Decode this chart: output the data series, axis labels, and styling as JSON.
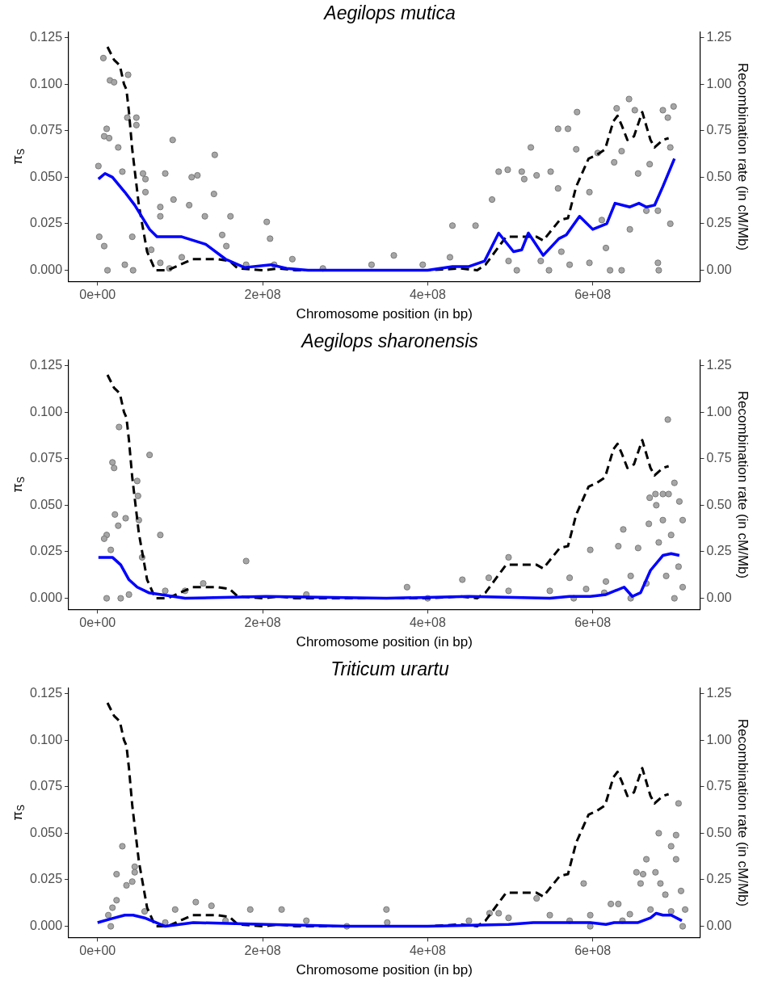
{
  "chart_data": [
    {
      "type": "scatter",
      "title": "Aegilops mutica",
      "xlabel": "Chromosome position (in bp)",
      "ylabel": "π$_{S}$",
      "y2label": "Recombination rate (in cM/Mb)",
      "grid": false,
      "legend": false,
      "xlim": [
        -35000000.0,
        730000000.0
      ],
      "ylim": [
        -0.006,
        0.128
      ],
      "y2lim": [
        -0.06,
        1.28
      ],
      "xticks": [
        {
          "value": 0,
          "label": "0e+00"
        },
        {
          "value": 200000000.0,
          "label": "2e+08"
        },
        {
          "value": 400000000.0,
          "label": "4e+08"
        },
        {
          "value": 600000000.0,
          "label": "6e+08"
        }
      ],
      "yticks": [
        {
          "value": 0,
          "label": "0.000"
        },
        {
          "value": 0.025,
          "label": "0.025"
        },
        {
          "value": 0.05,
          "label": "0.050"
        },
        {
          "value": 0.075,
          "label": "0.075"
        },
        {
          "value": 0.1,
          "label": "0.100"
        },
        {
          "value": 0.125,
          "label": "0.125"
        }
      ],
      "y2ticks": [
        {
          "value": 0,
          "label": "0.00"
        },
        {
          "value": 0.25,
          "label": "0.25"
        },
        {
          "value": 0.5,
          "label": "0.50"
        },
        {
          "value": 0.75,
          "label": "0.75"
        },
        {
          "value": 1,
          "label": "1.00"
        },
        {
          "value": 1.25,
          "label": "1.25"
        }
      ],
      "series": [
        {
          "type": "scatter",
          "marker": "circle",
          "color": "#a6a6a6",
          "x": [
            7000000.0,
            37000000.0,
            15000000.0,
            20000000.0,
            36000000.0,
            47000000.0,
            47000000.0,
            11000000.0,
            8000000.0,
            14000000.0,
            25000000.0,
            91000000.0,
            142000000.0,
            82000000.0,
            114000000.0,
            121000000.0,
            141000000.0,
            161000000.0,
            205000000.0,
            209000000.0,
            236000000.0,
            76000000.0,
            76000000.0,
            92000000.0,
            111000000.0,
            130000000.0,
            2000000.0,
            8000000.0,
            12000000.0,
            1000000.0,
            30000000.0,
            55000000.0,
            58000000.0,
            58000000.0,
            42000000.0,
            33000000.0,
            43000000.0,
            65000000.0,
            76000000.0,
            87000000.0,
            102000000.0,
            151000000.0,
            156000000.0,
            180000000.0,
            214000000.0,
            273000000.0,
            332000000.0,
            359000000.0,
            394000000.0,
            430000000.0,
            458000000.0,
            427000000.0,
            478000000.0,
            486000000.0,
            497000000.0,
            514000000.0,
            517000000.0,
            525000000.0,
            532000000.0,
            549000000.0,
            558000000.0,
            570000000.0,
            558000000.0,
            581000000.0,
            580000000.0,
            596000000.0,
            606000000.0,
            626000000.0,
            629000000.0,
            644000000.0,
            651000000.0,
            635000000.0,
            655000000.0,
            669000000.0,
            679000000.0,
            685000000.0,
            691000000.0,
            698000000.0,
            679000000.0,
            680000000.0,
            694000000.0,
            694000000.0,
            596000000.0,
            547000000.0,
            508000000.0,
            572000000.0,
            621000000.0,
            635000000.0,
            498000000.0,
            611000000.0,
            645000000.0,
            665000000.0,
            616000000.0,
            537000000.0,
            562000000.0
          ],
          "values": [
            0.114,
            0.105,
            0.102,
            0.101,
            0.082,
            0.082,
            0.078,
            0.076,
            0.072,
            0.071,
            0.066,
            0.07,
            0.062,
            0.052,
            0.05,
            0.051,
            0.041,
            0.029,
            0.026,
            0.017,
            0.006,
            0.034,
            0.029,
            0.038,
            0.035,
            0.029,
            0.018,
            0.013,
            0,
            0.056,
            0.053,
            0.052,
            0.049,
            0.042,
            0.018,
            0.003,
            0,
            0.011,
            0.004,
            0.001,
            0.007,
            0.019,
            0.013,
            0.003,
            0.003,
            0.001,
            0.003,
            0.008,
            0.003,
            0.024,
            0.024,
            0.007,
            0.038,
            0.053,
            0.054,
            0.053,
            0.049,
            0.066,
            0.051,
            0.053,
            0.076,
            0.076,
            0.044,
            0.085,
            0.065,
            0.042,
            0.063,
            0.058,
            0.087,
            0.092,
            0.086,
            0.064,
            0.052,
            0.057,
            0.032,
            0.086,
            0.082,
            0.088,
            0.004,
            0,
            0.025,
            0.066,
            0.004,
            0,
            0,
            0.003,
            0,
            0,
            0.005,
            0.027,
            0.022,
            0.032,
            0.012,
            0.005,
            0.01
          ]
        },
        {
          "type": "line",
          "axis": "y2",
          "marker": "none",
          "line_style": "dashed",
          "color": "#000000",
          "x": [
            12000000.0,
            20000000.0,
            27000000.0,
            32000000.0,
            35000000.0,
            38000000.0,
            42000000.0,
            50000000.0,
            60000000.0,
            70000000.0,
            85000000.0,
            100000000.0,
            115000000.0,
            145000000.0,
            160000000.0,
            170000000.0,
            200000000.0,
            220000000.0,
            240000000.0,
            300000000.0,
            400000000.0,
            440000000.0,
            460000000.0,
            470000000.0,
            485000000.0,
            495000000.0,
            532000000.0,
            540000000.0,
            560000000.0,
            570000000.0,
            580000000.0,
            595000000.0,
            605000000.0,
            615000000.0,
            625000000.0,
            630000000.0,
            635000000.0,
            642000000.0,
            650000000.0,
            660000000.0,
            670000000.0,
            675000000.0,
            685000000.0,
            692000000.0
          ],
          "values": [
            1.2,
            1.13,
            1.1,
            1.0,
            0.97,
            0.85,
            0.65,
            0.35,
            0.1,
            0.0,
            0.0,
            0.03,
            0.06,
            0.06,
            0.05,
            0.01,
            0.0,
            0.01,
            0.0,
            0.0,
            0.0,
            0.01,
            0.0,
            0.03,
            0.12,
            0.18,
            0.18,
            0.16,
            0.27,
            0.28,
            0.45,
            0.6,
            0.62,
            0.65,
            0.8,
            0.83,
            0.78,
            0.7,
            0.72,
            0.85,
            0.7,
            0.66,
            0.7,
            0.71
          ]
        },
        {
          "type": "line",
          "marker": "none",
          "line_style": "solid",
          "color": "#0000ff",
          "x": [
            1000000.0,
            9000000.0,
            18000000.0,
            33000000.0,
            45000000.0,
            63000000.0,
            72000000.0,
            102000000.0,
            131000000.0,
            155000000.0,
            178000000.0,
            210000000.0,
            229000000.0,
            255000000.0,
            400000000.0,
            430000000.0,
            450000000.0,
            469000000.0,
            486000000.0,
            504000000.0,
            514000000.0,
            522000000.0,
            540000000.0,
            559000000.0,
            568000000.0,
            584000000.0,
            600000000.0,
            617000000.0,
            627000000.0,
            645000000.0,
            656000000.0,
            665000000.0,
            675000000.0,
            685000000.0,
            699000000.0
          ],
          "values": [
            0.049,
            0.052,
            0.05,
            0.042,
            0.035,
            0.022,
            0.018,
            0.018,
            0.014,
            0.006,
            0.0015,
            0.003,
            0.001,
            0,
            0,
            0.002,
            0.002,
            0.005,
            0.02,
            0.01,
            0.011,
            0.02,
            0.008,
            0.017,
            0.019,
            0.029,
            0.022,
            0.025,
            0.036,
            0.034,
            0.036,
            0.034,
            0.035,
            0.045,
            0.06
          ]
        }
      ]
    },
    {
      "type": "scatter",
      "title": "Aegilops sharonensis",
      "xlabel": "Chromosome position (in bp)",
      "ylabel": "π$_{S}$",
      "y2label": "Recombination rate (in cM/Mb)",
      "grid": false,
      "legend": false,
      "xlim": [
        -35000000.0,
        730000000.0
      ],
      "ylim": [
        -0.006,
        0.128
      ],
      "y2lim": [
        -0.06,
        1.28
      ],
      "xticks": [
        {
          "value": 0,
          "label": "0e+00"
        },
        {
          "value": 200000000.0,
          "label": "2e+08"
        },
        {
          "value": 400000000.0,
          "label": "4e+08"
        },
        {
          "value": 600000000.0,
          "label": "6e+08"
        }
      ],
      "yticks": [
        {
          "value": 0,
          "label": "0.000"
        },
        {
          "value": 0.025,
          "label": "0.025"
        },
        {
          "value": 0.05,
          "label": "0.050"
        },
        {
          "value": 0.075,
          "label": "0.075"
        },
        {
          "value": 0.1,
          "label": "0.100"
        },
        {
          "value": 0.125,
          "label": "0.125"
        }
      ],
      "y2ticks": [
        {
          "value": 0,
          "label": "0.00"
        },
        {
          "value": 0.25,
          "label": "0.25"
        },
        {
          "value": 0.5,
          "label": "0.50"
        },
        {
          "value": 0.75,
          "label": "0.75"
        },
        {
          "value": 1,
          "label": "1.00"
        },
        {
          "value": 1.25,
          "label": "1.25"
        }
      ],
      "series": [
        {
          "type": "scatter",
          "marker": "circle",
          "color": "#a6a6a6",
          "x": [
            691000000.0,
            26000000.0,
            63000000.0,
            18000000.0,
            20000000.0,
            48000000.0,
            49000000.0,
            50000000.0,
            21000000.0,
            180000000.0,
            76000000.0,
            34000000.0,
            11000000.0,
            25000000.0,
            54000000.0,
            498000000.0,
            597000000.0,
            637000000.0,
            669000000.0,
            677000000.0,
            676000000.0,
            685000000.0,
            692000000.0,
            699000000.0,
            705000000.0,
            709000000.0,
            680000000.0,
            695000000.0,
            655000000.0,
            631000000.0,
            616000000.0,
            572000000.0,
            474000000.0,
            442000000.0,
            375000000.0,
            128000000.0,
            106000000.0,
            548000000.0,
            592000000.0,
            646000000.0,
            665000000.0,
            675000000.0,
            689000000.0,
            709000000.0,
            699000000.0,
            646000000.0,
            11000000.0,
            28000000.0,
            38000000.0,
            82000000.0,
            253000000.0,
            400000000.0,
            498000000.0,
            577000000.0,
            614000000.0,
            704000000.0,
            685000000.0,
            668000000.0,
            16000000.0,
            8000000.0
          ],
          "values": [
            0.096,
            0.092,
            0.077,
            0.073,
            0.07,
            0.063,
            0.055,
            0.042,
            0.045,
            0.02,
            0.034,
            0.043,
            0.034,
            0.039,
            0.022,
            0.022,
            0.026,
            0.037,
            0.054,
            0.05,
            0.056,
            0.056,
            0.056,
            0.062,
            0.052,
            0.042,
            0.03,
            0.034,
            0.027,
            0.028,
            0.009,
            0.011,
            0.011,
            0.01,
            0.006,
            0.008,
            0.004,
            0.004,
            0.005,
            0.012,
            0.008,
            null,
            0.012,
            0.006,
            0,
            0,
            0,
            0,
            0.002,
            0.004,
            0.002,
            0,
            0.004,
            0,
            0.003,
            0.017,
            0.042,
            0.04,
            0.026,
            0.032
          ]
        },
        {
          "type": "line",
          "axis": "y2",
          "marker": "none",
          "line_style": "dashed",
          "color": "#000000",
          "x": [
            12000000.0,
            20000000.0,
            27000000.0,
            32000000.0,
            35000000.0,
            38000000.0,
            42000000.0,
            50000000.0,
            60000000.0,
            70000000.0,
            85000000.0,
            100000000.0,
            115000000.0,
            145000000.0,
            160000000.0,
            170000000.0,
            200000000.0,
            220000000.0,
            240000000.0,
            300000000.0,
            400000000.0,
            440000000.0,
            460000000.0,
            470000000.0,
            485000000.0,
            495000000.0,
            532000000.0,
            540000000.0,
            560000000.0,
            570000000.0,
            580000000.0,
            595000000.0,
            605000000.0,
            615000000.0,
            625000000.0,
            630000000.0,
            635000000.0,
            642000000.0,
            650000000.0,
            660000000.0,
            670000000.0,
            675000000.0,
            685000000.0,
            692000000.0
          ],
          "values": [
            1.2,
            1.13,
            1.1,
            1.0,
            0.97,
            0.85,
            0.65,
            0.35,
            0.1,
            0.0,
            0.0,
            0.03,
            0.06,
            0.06,
            0.05,
            0.01,
            0.0,
            0.01,
            0.0,
            0.0,
            0.0,
            0.01,
            0.0,
            0.03,
            0.12,
            0.18,
            0.18,
            0.16,
            0.27,
            0.28,
            0.45,
            0.6,
            0.62,
            0.65,
            0.8,
            0.83,
            0.78,
            0.7,
            0.72,
            0.85,
            0.7,
            0.66,
            0.7,
            0.71
          ]
        },
        {
          "type": "line",
          "marker": "none",
          "line_style": "solid",
          "color": "#0000ff",
          "x": [
            1000000.0,
            11000000.0,
            18000000.0,
            28000000.0,
            38000000.0,
            48000000.0,
            62000000.0,
            77000000.0,
            106000000.0,
            204000000.0,
            350000000.0,
            450000000.0,
            548000000.0,
            572000000.0,
            597000000.0,
            616000000.0,
            638000000.0,
            648000000.0,
            658000000.0,
            670000000.0,
            685000000.0,
            695000000.0,
            705000000.0
          ],
          "values": [
            0.022,
            0.022,
            0.022,
            0.018,
            0.01,
            0.006,
            0.003,
            0.002,
            0,
            0.001,
            0,
            0.001,
            0,
            0.001,
            0.001,
            0.002,
            0.006,
            0.001,
            0.003,
            0.015,
            0.023,
            0.024,
            0.023
          ]
        }
      ]
    },
    {
      "type": "scatter",
      "title": "Triticum urartu",
      "xlabel": "Chromosome position (in bp)",
      "ylabel": "π$_{S}$",
      "y2label": "Recombination rate (in cM/Mb)",
      "grid": false,
      "legend": false,
      "xlim": [
        -35000000.0,
        730000000.0
      ],
      "ylim": [
        -0.006,
        0.128
      ],
      "y2lim": [
        -0.06,
        1.28
      ],
      "xticks": [
        {
          "value": 0,
          "label": "0e+00"
        },
        {
          "value": 200000000.0,
          "label": "2e+08"
        },
        {
          "value": 400000000.0,
          "label": "4e+08"
        },
        {
          "value": 600000000.0,
          "label": "6e+08"
        }
      ],
      "yticks": [
        {
          "value": 0,
          "label": "0.000"
        },
        {
          "value": 0.025,
          "label": "0.025"
        },
        {
          "value": 0.05,
          "label": "0.050"
        },
        {
          "value": 0.075,
          "label": "0.075"
        },
        {
          "value": 0.1,
          "label": "0.100"
        },
        {
          "value": 0.125,
          "label": "0.125"
        }
      ],
      "y2ticks": [
        {
          "value": 0,
          "label": "0.00"
        },
        {
          "value": 0.25,
          "label": "0.25"
        },
        {
          "value": 0.5,
          "label": "0.50"
        },
        {
          "value": 0.75,
          "label": "0.75"
        },
        {
          "value": 1,
          "label": "1.00"
        },
        {
          "value": 1.25,
          "label": "1.25"
        }
      ],
      "series": [
        {
          "type": "scatter",
          "marker": "circle",
          "color": "#a6a6a6",
          "x": [
            30000000.0,
            23000000.0,
            45000000.0,
            45000000.0,
            35000000.0,
            42000000.0,
            704000000.0,
            680000000.0,
            701000000.0,
            695000000.0,
            701000000.0,
            665000000.0,
            676000000.0,
            682000000.0,
            688000000.0,
            707000000.0,
            589000000.0,
            653000000.0,
            661000000.0,
            658000000.0,
            532000000.0,
            622000000.0,
            631000000.0,
            119000000.0,
            138000000.0,
            185000000.0,
            223000000.0,
            350000000.0,
            475000000.0,
            486000000.0,
            94000000.0,
            18000000.0,
            57000000.0,
            23000000.0,
            13000000.0,
            82000000.0,
            155000000.0,
            253000000.0,
            351000000.0,
            450000000.0,
            498000000.0,
            548000000.0,
            597000000.0,
            645000000.0,
            670000000.0,
            695000000.0,
            712000000.0,
            709000000.0,
            16000000.0,
            597000000.0,
            302000000.0,
            572000000.0,
            636000000.0
          ],
          "values": [
            0.043,
            0.028,
            0.032,
            0.029,
            0.022,
            0.024,
            0.066,
            0.05,
            0.049,
            0.043,
            0.036,
            0.036,
            0.029,
            0.023,
            0.017,
            0.019,
            0.023,
            0.029,
            0.028,
            0.023,
            0.015,
            0.012,
            0.012,
            0.013,
            0.011,
            0.009,
            0.009,
            0.009,
            0.007,
            0.007,
            0.009,
            0.01,
            0.008,
            0.014,
            0.006,
            0.002,
            0.003,
            0.003,
            0.002,
            0.003,
            0.0045,
            0.006,
            0.006,
            0.0065,
            0.009,
            0.008,
            0.009,
            0,
            0,
            0,
            0,
            0.003,
            0.003
          ]
        },
        {
          "type": "line",
          "axis": "y2",
          "marker": "none",
          "line_style": "dashed",
          "color": "#000000",
          "x": [
            12000000.0,
            20000000.0,
            27000000.0,
            32000000.0,
            35000000.0,
            38000000.0,
            42000000.0,
            50000000.0,
            60000000.0,
            70000000.0,
            85000000.0,
            100000000.0,
            115000000.0,
            145000000.0,
            160000000.0,
            170000000.0,
            200000000.0,
            220000000.0,
            240000000.0,
            300000000.0,
            400000000.0,
            440000000.0,
            460000000.0,
            470000000.0,
            485000000.0,
            495000000.0,
            532000000.0,
            540000000.0,
            560000000.0,
            570000000.0,
            580000000.0,
            595000000.0,
            605000000.0,
            615000000.0,
            625000000.0,
            630000000.0,
            635000000.0,
            642000000.0,
            650000000.0,
            660000000.0,
            670000000.0,
            675000000.0,
            685000000.0,
            692000000.0
          ],
          "values": [
            1.2,
            1.13,
            1.1,
            1.0,
            0.97,
            0.85,
            0.65,
            0.35,
            0.1,
            0.0,
            0.0,
            0.03,
            0.06,
            0.06,
            0.05,
            0.01,
            0.0,
            0.01,
            0.0,
            0.0,
            0.0,
            0.01,
            0.0,
            0.03,
            0.12,
            0.18,
            0.18,
            0.16,
            0.27,
            0.28,
            0.45,
            0.6,
            0.62,
            0.65,
            0.8,
            0.83,
            0.78,
            0.7,
            0.72,
            0.85,
            0.7,
            0.66,
            0.7,
            0.71
          ]
        },
        {
          "type": "line",
          "marker": "none",
          "line_style": "solid",
          "color": "#0000ff",
          "x": [
            0.0,
            16000000.0,
            33000000.0,
            43000000.0,
            57000000.0,
            82000000.0,
            116000000.0,
            204000000.0,
            302000000.0,
            400000000.0,
            498000000.0,
            528000000.0,
            557000000.0,
            597000000.0,
            616000000.0,
            626000000.0,
            655000000.0,
            670000000.0,
            677000000.0,
            685000000.0,
            695000000.0,
            708000000.0
          ],
          "values": [
            0.002,
            0.004,
            0.006,
            0.006,
            0.0045,
            0,
            0.002,
            0.001,
            0,
            0,
            0.001,
            0.002,
            0.002,
            0.002,
            0.001,
            0.002,
            0.002,
            0.0045,
            0.007,
            0.006,
            0.006,
            0.003
          ]
        }
      ]
    }
  ]
}
